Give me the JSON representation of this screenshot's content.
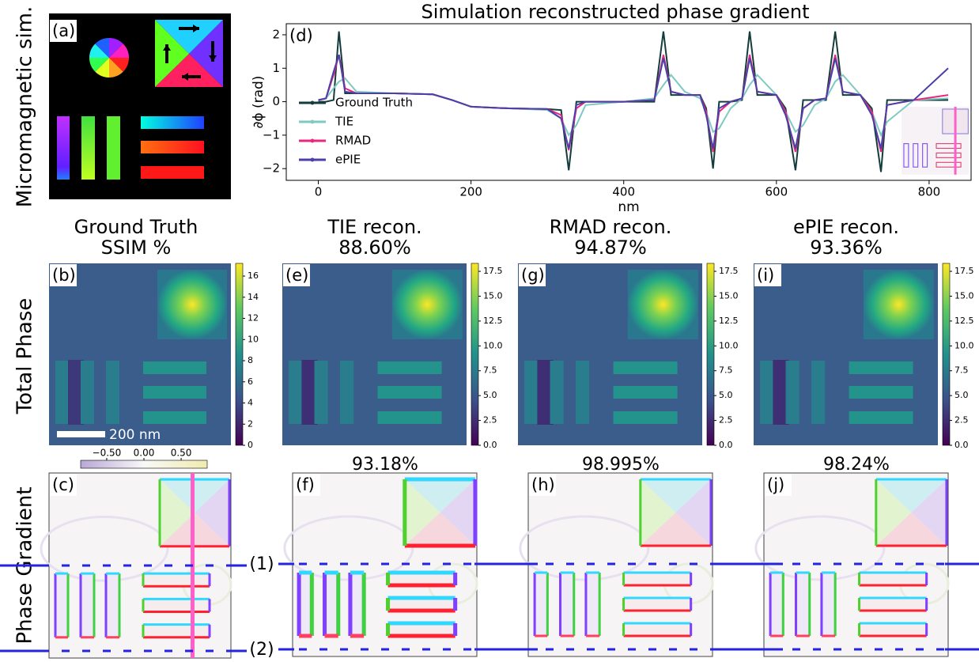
{
  "row_labels": [
    "Micromagnetic sim.",
    "Total Phase",
    "Phase Gradient"
  ],
  "panel_labels": [
    "(a)",
    "(b)",
    "(c)",
    "(d)",
    "(e)",
    "(f)",
    "(g)",
    "(h)",
    "(i)",
    "(j)"
  ],
  "columns": [
    {
      "title": "Ground Truth",
      "subtitle": "SSIM %"
    },
    {
      "title": "TIE recon.",
      "subtitle": "88.60%"
    },
    {
      "title": "RMAD recon.",
      "subtitle": "94.87%"
    },
    {
      "title": "ePIE recon.",
      "subtitle": "93.36%"
    }
  ],
  "gradient_scores": [
    "93.18%",
    "98.995%",
    "98.24%"
  ],
  "scale_bar": "200 nm",
  "line_markers": [
    "(1)",
    "(2)"
  ],
  "phase_colorbars": [
    {
      "lim": [
        0,
        17.2
      ],
      "ticks": [
        0,
        2,
        4,
        6,
        8,
        10,
        12,
        14,
        16
      ]
    },
    {
      "lim": [
        0,
        18.3
      ],
      "ticks": [
        {
          "value": 0,
          "label": "0.0"
        },
        {
          "value": 2.5,
          "label": "2.5"
        },
        {
          "value": 5,
          "label": "5.0"
        },
        {
          "value": 7.5,
          "label": "7.5"
        },
        {
          "value": 10,
          "label": "10.0"
        },
        {
          "value": 12.5,
          "label": "12.5"
        },
        {
          "value": 15,
          "label": "15.0"
        },
        {
          "value": 17.5,
          "label": "17.5"
        }
      ]
    },
    {
      "lim": [
        0,
        18.3
      ],
      "ticks": [
        {
          "value": 0,
          "label": "0.0"
        },
        {
          "value": 2.5,
          "label": "2.5"
        },
        {
          "value": 5,
          "label": "5.0"
        },
        {
          "value": 7.5,
          "label": "7.5"
        },
        {
          "value": 10,
          "label": "10.0"
        },
        {
          "value": 12.5,
          "label": "12.5"
        },
        {
          "value": 15,
          "label": "15.0"
        },
        {
          "value": 17.5,
          "label": "17.5"
        }
      ]
    },
    {
      "lim": [
        0,
        18.3
      ],
      "ticks": [
        {
          "value": 0,
          "label": "0.0"
        },
        {
          "value": 2.5,
          "label": "2.5"
        },
        {
          "value": 5,
          "label": "5.0"
        },
        {
          "value": 7.5,
          "label": "7.5"
        },
        {
          "value": 10,
          "label": "10.0"
        },
        {
          "value": 12.5,
          "label": "12.5"
        },
        {
          "value": 15,
          "label": "15.0"
        },
        {
          "value": 17.5,
          "label": "17.5"
        }
      ]
    }
  ],
  "gradient_colorbar": {
    "lim": [
      -0.85,
      0.85
    ],
    "ticks": [
      {
        "value": -0.5,
        "label": "−0.50"
      },
      {
        "value": 0,
        "label": "0.00"
      },
      {
        "value": 0.5,
        "label": "0.50"
      }
    ]
  },
  "chart_data": {
    "type": "line",
    "title": "Simulation reconstructed phase gradient",
    "xlabel": "nm",
    "ylabel": "∂ϕ (rad)",
    "x": [
      0,
      10,
      20,
      27,
      35,
      50,
      100,
      150,
      175,
      200,
      250,
      300,
      318,
      328,
      338,
      350,
      400,
      440,
      452,
      462,
      480,
      500,
      508,
      517,
      525,
      540,
      555,
      565,
      575,
      600,
      612,
      625,
      635,
      650,
      665,
      677,
      687,
      710,
      725,
      737,
      745,
      780,
      825
    ],
    "series": [
      {
        "name": "Ground Truth",
        "color": "#143c3c",
        "values": [
          0,
          0,
          0.05,
          2.1,
          0.25,
          0.25,
          0.25,
          0.22,
          0.05,
          -0.15,
          -0.2,
          -0.22,
          -0.25,
          -2.05,
          0,
          0,
          0,
          0,
          2.1,
          0.2,
          0.2,
          0.2,
          -0.2,
          -2.0,
          0,
          0,
          0.05,
          2.1,
          0.2,
          0.2,
          -0.2,
          -2.05,
          0.05,
          0.05,
          0.05,
          2.1,
          0.2,
          0.2,
          -0.2,
          -2.1,
          0.05,
          0.05,
          0.05
        ]
      },
      {
        "name": "TIE",
        "color": "#7ecac2",
        "values": [
          0.05,
          0.1,
          0.4,
          0.6,
          0.7,
          0.3,
          0.25,
          0.22,
          0.05,
          -0.15,
          -0.2,
          -0.25,
          -0.5,
          -1.0,
          -0.7,
          -0.1,
          0,
          0.1,
          0.5,
          0.8,
          0.3,
          0.1,
          -0.3,
          -0.9,
          -0.8,
          -0.2,
          0.1,
          0.5,
          0.8,
          0.2,
          -0.3,
          -0.9,
          -0.7,
          -0.1,
          0.1,
          0.6,
          0.8,
          0.2,
          -0.3,
          -1.0,
          -0.6,
          0.05,
          0.1
        ]
      },
      {
        "name": "RMAD",
        "color": "#e8277d",
        "values": [
          0.05,
          0.1,
          0.8,
          1.4,
          0.4,
          0.25,
          0.25,
          0.22,
          0.05,
          -0.15,
          -0.2,
          -0.22,
          -0.4,
          -1.45,
          -0.2,
          0,
          0,
          0.05,
          1.4,
          0.3,
          0.2,
          0.2,
          -0.3,
          -1.5,
          -0.3,
          0,
          0.1,
          1.4,
          0.3,
          0.2,
          -0.3,
          -1.5,
          -0.2,
          0.05,
          0.1,
          1.4,
          0.3,
          0.2,
          -0.3,
          -1.5,
          -0.1,
          0.05,
          0.2
        ]
      },
      {
        "name": "ePIE",
        "color": "#4b3fa8",
        "values": [
          0.05,
          0.1,
          0.9,
          1.4,
          0.3,
          0.25,
          0.25,
          0.22,
          0.05,
          -0.15,
          -0.2,
          -0.22,
          -0.5,
          -1.4,
          -0.1,
          0,
          0,
          0.05,
          1.3,
          0.3,
          0.2,
          0.2,
          -0.4,
          -1.4,
          -0.2,
          0,
          0.1,
          1.3,
          0.3,
          0.2,
          -0.4,
          -1.4,
          -0.2,
          0.05,
          0.1,
          1.3,
          0.3,
          0.2,
          -0.4,
          -1.4,
          -0.1,
          0.05,
          1.0
        ]
      }
    ],
    "xlim": [
      -42,
      855
    ],
    "ylim": [
      -2.35,
      2.33
    ],
    "xticks": [
      0,
      200,
      400,
      600,
      800
    ],
    "yticks": [
      {
        "value": -2,
        "label": "−2"
      },
      {
        "value": -1,
        "label": "−1"
      },
      0,
      1,
      2
    ],
    "legend": "lower left"
  }
}
